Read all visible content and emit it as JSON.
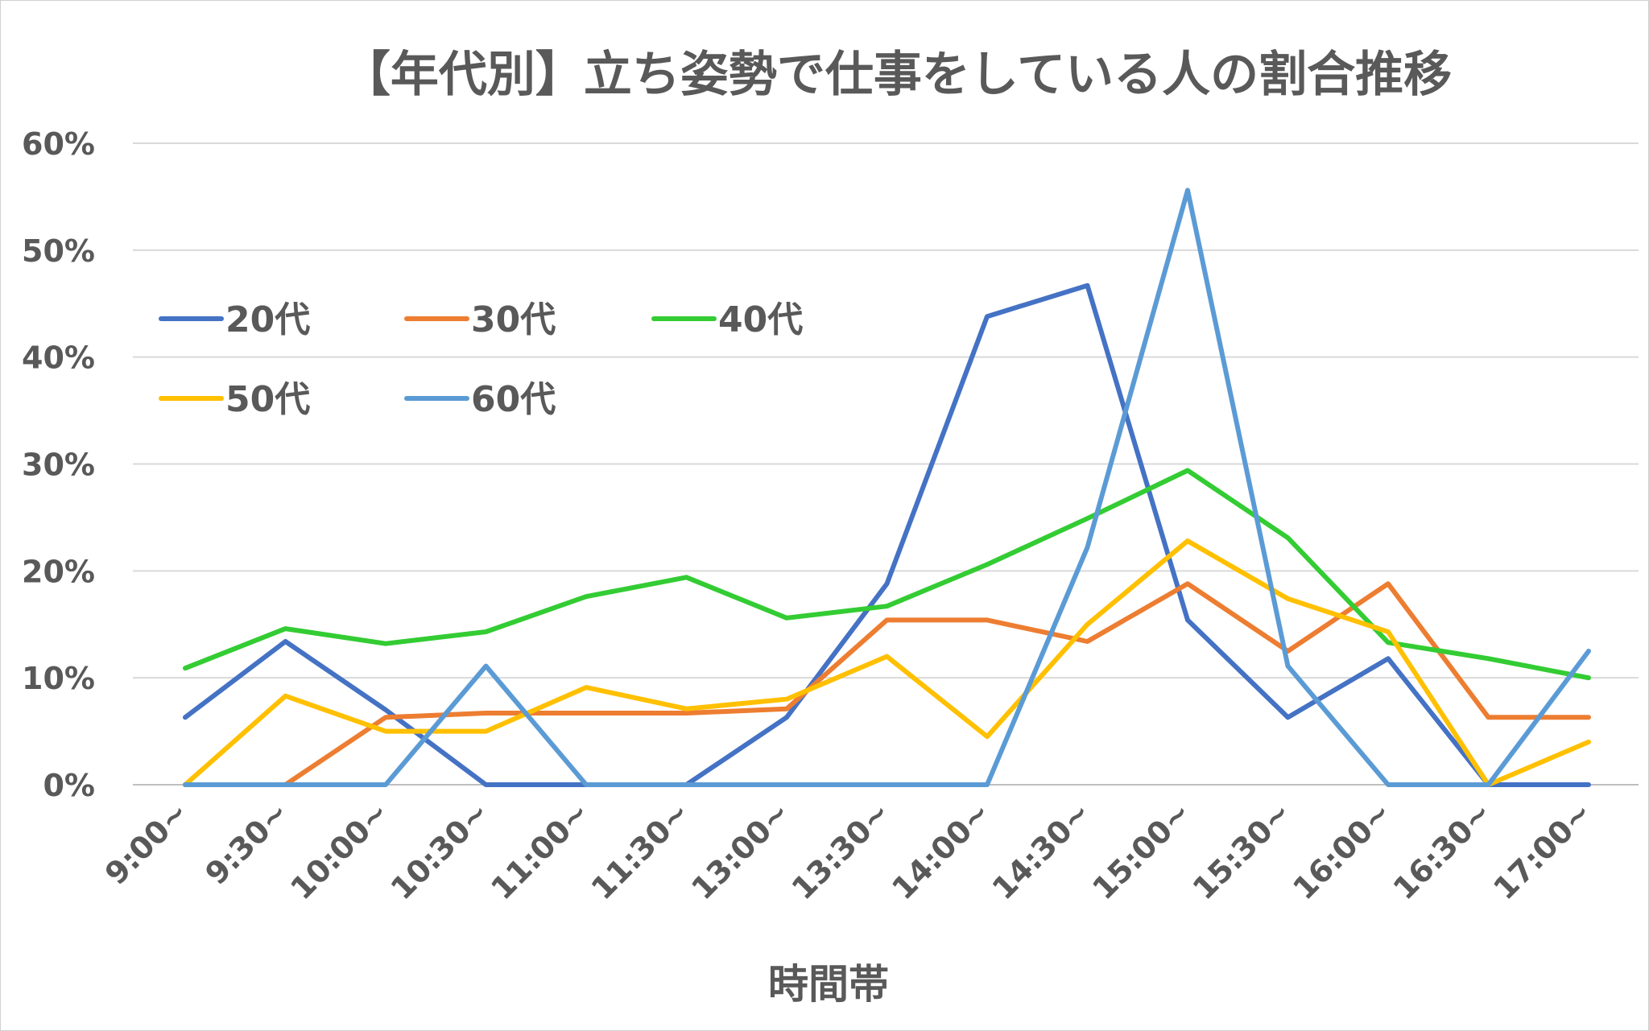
{
  "chart_data": {
    "type": "line",
    "title": "【年代別】立ち姿勢で仕事をしている人の割合推移",
    "xlabel": "時間帯",
    "ylabel": "",
    "ylim": [
      0,
      60
    ],
    "yticks": [
      0,
      10,
      20,
      30,
      40,
      50,
      60
    ],
    "ytick_labels": [
      "0%",
      "10%",
      "20%",
      "30%",
      "40%",
      "50%",
      "60%"
    ],
    "grid": true,
    "legend_position": "upper-left",
    "categories": [
      "9:00~",
      "9:30~",
      "10:00~",
      "10:30~",
      "11:00~",
      "11:30~",
      "13:00~",
      "13:30~",
      "14:00~",
      "14:30~",
      "15:00~",
      "15:30~",
      "16:00~",
      "16:30~",
      "17:00~"
    ],
    "series": [
      {
        "name": "20代",
        "color": "#4472C4",
        "values": [
          6.3,
          13.4,
          7.0,
          0,
          0,
          0,
          6.3,
          18.8,
          43.8,
          46.7,
          15.4,
          6.3,
          11.8,
          0,
          0
        ]
      },
      {
        "name": "30代",
        "color": "#ED7D31",
        "values": [
          0,
          0,
          6.3,
          6.7,
          6.7,
          6.7,
          7.1,
          15.4,
          15.4,
          13.4,
          18.8,
          12.5,
          18.8,
          6.3,
          6.3
        ]
      },
      {
        "name": "40代",
        "color": "#33CC33",
        "values": [
          10.9,
          14.6,
          13.2,
          14.3,
          17.6,
          19.4,
          15.6,
          16.7,
          20.6,
          24.9,
          29.4,
          23.1,
          13.3,
          11.8,
          10.0
        ]
      },
      {
        "name": "50代",
        "color": "#FFC000",
        "values": [
          0,
          8.3,
          5.0,
          5.0,
          9.1,
          7.1,
          8.0,
          12.0,
          4.5,
          15.0,
          22.8,
          17.4,
          14.3,
          0,
          4.0
        ]
      },
      {
        "name": "60代",
        "color": "#5B9BD5",
        "values": [
          0,
          0,
          0,
          11.1,
          0,
          0,
          0,
          0,
          0,
          22.2,
          55.6,
          11.1,
          0,
          0,
          12.5
        ]
      }
    ]
  }
}
